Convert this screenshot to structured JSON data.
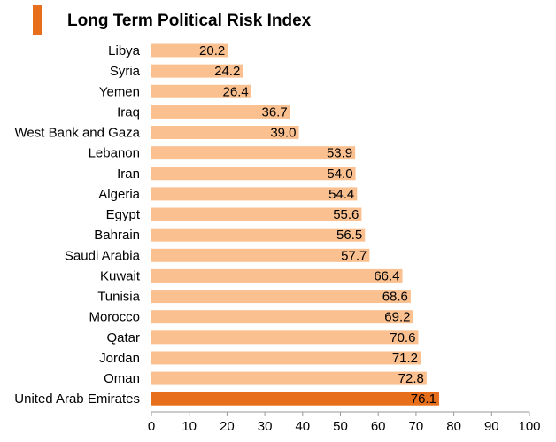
{
  "chart_data": {
    "type": "bar",
    "orientation": "horizontal",
    "title": "Long Term Political Risk Index",
    "categories": [
      "Libya",
      "Syria",
      "Yemen",
      "Iraq",
      "West Bank and Gaza",
      "Lebanon",
      "Iran",
      "Algeria",
      "Egypt",
      "Bahrain",
      "Saudi Arabia",
      "Kuwait",
      "Tunisia",
      "Morocco",
      "Qatar",
      "Jordan",
      "Oman",
      "United Arab Emirates"
    ],
    "values": [
      20.2,
      24.2,
      26.4,
      36.7,
      39.0,
      53.9,
      54.0,
      54.4,
      55.6,
      56.5,
      57.7,
      66.4,
      68.6,
      69.2,
      70.6,
      71.2,
      72.8,
      76.1
    ],
    "value_labels": [
      "20.2",
      "24.2",
      "26.4",
      "36.7",
      "39.0",
      "53.9",
      "54.0",
      "54.4",
      "55.6",
      "56.5",
      "57.7",
      "66.4",
      "68.6",
      "69.2",
      "70.6",
      "71.2",
      "72.8",
      "76.1"
    ],
    "highlight_category": "United Arab Emirates",
    "xlim": [
      0,
      100
    ],
    "xticks": [
      0,
      10,
      20,
      30,
      40,
      50,
      60,
      70,
      80,
      90,
      100
    ],
    "xlabel": "",
    "ylabel": "",
    "grid": false,
    "colors": {
      "bar": "#fbc08f",
      "highlight": "#e76e1a",
      "title_accent": "#e76e1a",
      "axis": "#999999"
    }
  }
}
